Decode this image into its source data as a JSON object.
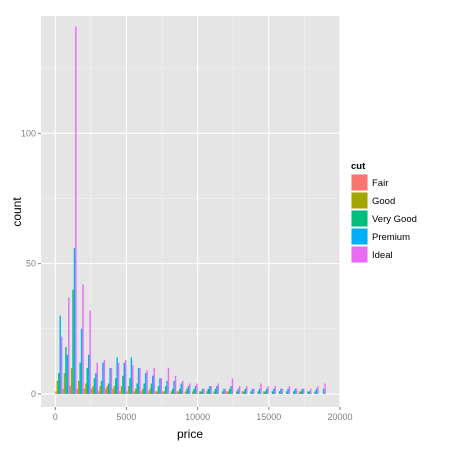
{
  "chart_data": {
    "type": "bar",
    "subtype": "dodged-histogram",
    "title": "",
    "xlabel": "price",
    "ylabel": "count",
    "xlim": [
      -1000,
      20000
    ],
    "ylim": [
      -5,
      145
    ],
    "x_ticks": [
      0,
      5000,
      10000,
      15000,
      20000
    ],
    "x_tick_labels": [
      "0",
      "5000",
      "10000",
      "15000",
      "20000"
    ],
    "y_ticks": [
      0,
      50,
      100
    ],
    "y_tick_labels": [
      "0",
      "50",
      "100"
    ],
    "grid": true,
    "legend_position": "right",
    "legend_title": "cut",
    "bin_width": 500,
    "bin_starts": [
      0,
      500,
      1000,
      1500,
      2000,
      2500,
      3000,
      3500,
      4000,
      4500,
      5000,
      5500,
      6000,
      6500,
      7000,
      7500,
      8000,
      8500,
      9000,
      9500,
      10000,
      10500,
      11000,
      11500,
      12000,
      12500,
      13000,
      13500,
      14000,
      14500,
      15000,
      15500,
      16000,
      16500,
      17000,
      17500,
      18000,
      18500
    ],
    "series": [
      {
        "name": "Fair",
        "color": "#F8766D",
        "values": [
          1,
          2,
          3,
          2,
          2,
          2,
          1,
          2,
          2,
          1,
          1,
          1,
          1,
          1,
          1,
          1,
          0,
          1,
          0,
          0,
          0,
          0,
          0,
          0,
          1,
          0,
          0,
          0,
          0,
          0,
          0,
          0,
          0,
          0,
          0,
          0,
          0,
          0
        ]
      },
      {
        "name": "Good",
        "color": "#A3A500",
        "values": [
          5,
          8,
          10,
          5,
          4,
          3,
          3,
          3,
          3,
          3,
          3,
          2,
          2,
          2,
          1,
          1,
          1,
          1,
          1,
          1,
          1,
          1,
          1,
          0,
          1,
          0,
          1,
          0,
          0,
          1,
          0,
          0,
          0,
          0,
          1,
          0,
          0,
          0
        ]
      },
      {
        "name": "Very Good",
        "color": "#00BF7D",
        "values": [
          8,
          18,
          40,
          12,
          10,
          6,
          5,
          4,
          6,
          7,
          6,
          4,
          4,
          4,
          3,
          3,
          2,
          2,
          2,
          2,
          1,
          2,
          2,
          1,
          2,
          1,
          1,
          1,
          1,
          1,
          1,
          1,
          1,
          1,
          1,
          1,
          1,
          0
        ]
      },
      {
        "name": "Premium",
        "color": "#00B0F6",
        "values": [
          30,
          15,
          56,
          25,
          15,
          8,
          12,
          10,
          14,
          12,
          14,
          10,
          8,
          7,
          6,
          5,
          5,
          4,
          3,
          3,
          2,
          3,
          3,
          2,
          3,
          2,
          2,
          2,
          2,
          2,
          2,
          2,
          2,
          2,
          2,
          1,
          2,
          2
        ]
      },
      {
        "name": "Ideal",
        "color": "#E76BF3",
        "values": [
          22,
          37,
          141,
          42,
          32,
          12,
          13,
          10,
          12,
          13,
          11,
          10,
          9,
          10,
          6,
          10,
          7,
          5,
          4,
          4,
          2,
          3,
          4,
          2,
          6,
          3,
          3,
          2,
          4,
          3,
          3,
          2,
          3,
          2,
          2,
          2,
          3,
          4
        ]
      }
    ]
  }
}
